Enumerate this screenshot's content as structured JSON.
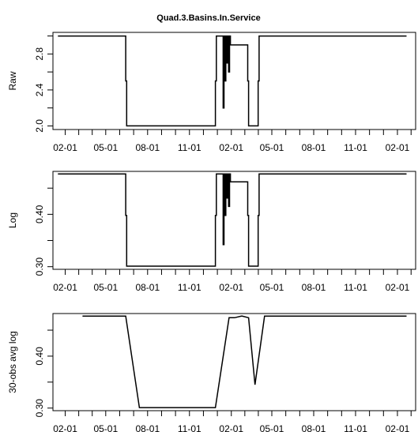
{
  "chart_data": [
    {
      "type": "line",
      "title": "Quad.3.Basins.In.Service",
      "ylabel": "Raw",
      "x_tick_labels": [
        "02-01",
        "05-01",
        "08-01",
        "11-01",
        "02-01",
        "05-01",
        "08-01",
        "11-01",
        "02-01"
      ],
      "x_tick_positions": [
        0,
        89,
        181,
        273,
        365,
        454,
        546,
        638,
        730
      ],
      "y_ticks": [
        2.0,
        2.4,
        2.8
      ],
      "y_tick_labels": [
        "2.0",
        "2.4",
        "2.8"
      ],
      "xlim": [
        -27,
        770
      ],
      "ylim": [
        1.96,
        3.04
      ],
      "x": [
        -16,
        133,
        133,
        135,
        135,
        330,
        330,
        332,
        332,
        347,
        347,
        349,
        349,
        351,
        351,
        353,
        353,
        355,
        355,
        357,
        357,
        359,
        359,
        361,
        361,
        363,
        363,
        401,
        401,
        403,
        403,
        424,
        424,
        426,
        426,
        750
      ],
      "y": [
        3,
        3,
        2.5,
        2.5,
        2,
        2,
        2.5,
        2.5,
        3,
        3,
        2.2,
        2.2,
        3,
        3,
        2.5,
        2.5,
        3,
        3,
        2.7,
        2.7,
        3,
        3,
        2.6,
        2.6,
        3,
        3,
        2.9,
        2.9,
        2.5,
        2.5,
        2,
        2,
        2.5,
        2.5,
        3,
        3
      ]
    },
    {
      "type": "line",
      "ylabel": "Log",
      "x_tick_labels": [
        "02-01",
        "05-01",
        "08-01",
        "11-01",
        "02-01",
        "05-01",
        "08-01",
        "11-01",
        "02-01"
      ],
      "x_tick_positions": [
        0,
        89,
        181,
        273,
        365,
        454,
        546,
        638,
        730
      ],
      "y_ticks": [
        0.3,
        0.4
      ],
      "y_tick_labels": [
        "0.30",
        "0.40"
      ],
      "xlim": [
        -27,
        770
      ],
      "ylim": [
        0.295,
        0.482
      ],
      "x": [
        -16,
        133,
        133,
        135,
        135,
        330,
        330,
        332,
        332,
        347,
        347,
        349,
        349,
        351,
        351,
        353,
        353,
        355,
        355,
        357,
        357,
        359,
        359,
        361,
        361,
        363,
        363,
        401,
        401,
        403,
        403,
        424,
        424,
        426,
        426,
        750
      ],
      "y": [
        0.477,
        0.477,
        0.398,
        0.398,
        0.301,
        0.301,
        0.398,
        0.398,
        0.477,
        0.477,
        0.342,
        0.342,
        0.477,
        0.477,
        0.398,
        0.398,
        0.477,
        0.477,
        0.431,
        0.431,
        0.477,
        0.477,
        0.415,
        0.415,
        0.477,
        0.477,
        0.462,
        0.462,
        0.398,
        0.398,
        0.301,
        0.301,
        0.398,
        0.398,
        0.477,
        0.477
      ]
    },
    {
      "type": "line",
      "ylabel": "30-obs avg log",
      "x_tick_labels": [
        "02-01",
        "05-01",
        "08-01",
        "11-01",
        "02-01",
        "05-01",
        "08-01",
        "11-01",
        "02-01"
      ],
      "x_tick_positions": [
        0,
        89,
        181,
        273,
        365,
        454,
        546,
        638,
        730
      ],
      "y_ticks": [
        0.3,
        0.4
      ],
      "y_tick_labels": [
        "0.30",
        "0.40"
      ],
      "xlim": [
        -27,
        770
      ],
      "ylim": [
        0.295,
        0.482
      ],
      "x": [
        38,
        133,
        163,
        330,
        360,
        372,
        387,
        389,
        403,
        417,
        438,
        750
      ],
      "y": [
        0.477,
        0.477,
        0.301,
        0.301,
        0.474,
        0.474,
        0.477,
        0.477,
        0.474,
        0.345,
        0.477,
        0.477
      ]
    }
  ]
}
